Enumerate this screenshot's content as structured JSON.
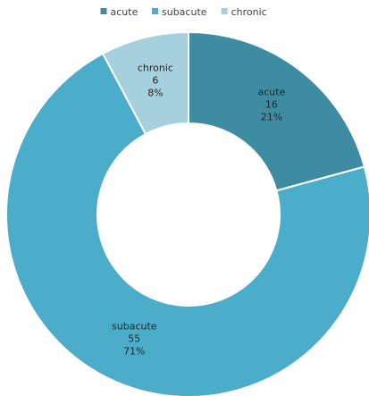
{
  "chart_data": {
    "type": "pie",
    "style": "donut",
    "legend_position": "top",
    "categories": [
      "acute",
      "subacute",
      "chronic"
    ],
    "values": [
      16,
      55,
      6
    ],
    "percents": [
      "21%",
      "71%",
      "8%"
    ],
    "value_labels": [
      "16",
      "55",
      "6"
    ],
    "colors": [
      "#3d8ca1",
      "#4badc9",
      "#a6d0dd"
    ]
  }
}
